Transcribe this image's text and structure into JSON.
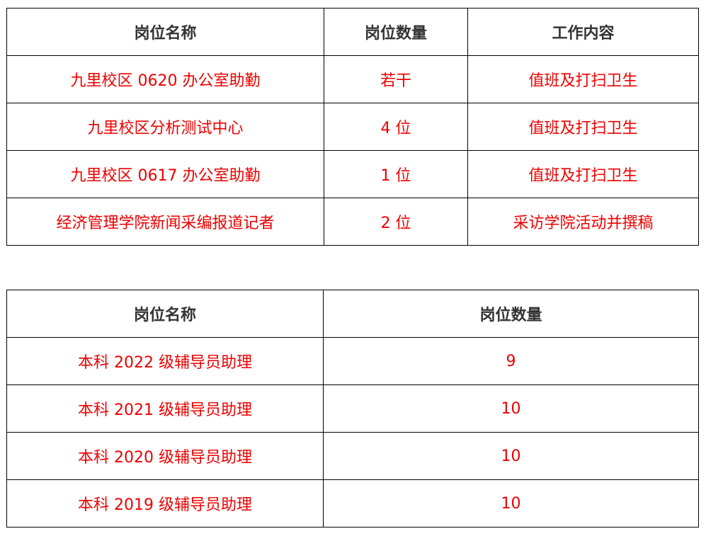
{
  "table1": {
    "headers": [
      "岗位名称",
      "岗位数量",
      "工作内容"
    ],
    "rows": [
      [
        "九里校区 0620 办公室助勤",
        "若干",
        "值班及打扫卫生"
      ],
      [
        "九里校区分析测试中心",
        "4 位",
        "值班及打扫卫生"
      ],
      [
        "九里校区 0617 办公室助勤",
        "1 位",
        "值班及打扫卫生"
      ],
      [
        "经济管理学院新闻采编报道记者",
        "2 位",
        "采访学院活动并撰稿"
      ]
    ]
  },
  "table2": {
    "headers": [
      "岗位名称",
      "岗位数量"
    ],
    "rows": [
      [
        "本科 2022 级辅导员助理",
        "9"
      ],
      [
        "本科 2021 级辅导员助理",
        "10"
      ],
      [
        "本科 2020 级辅导员助理",
        "10"
      ],
      [
        "本科 2019 级辅导员助理",
        "10"
      ]
    ]
  },
  "colors": {
    "header_text": "#333333",
    "body_text": "#ee0000",
    "border": "#000000"
  }
}
